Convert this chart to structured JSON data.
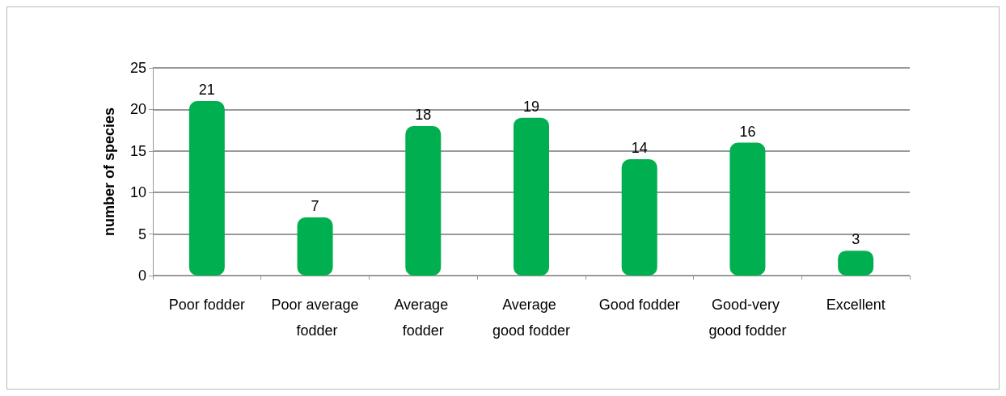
{
  "chart_data": {
    "type": "bar",
    "ylabel": "number of species",
    "categories": [
      "Poor fodder",
      "Poor average fodder",
      "Average fodder",
      "Average good fodder",
      "Good fodder",
      "Good-very good fodder",
      "Excellent"
    ],
    "values": [
      21,
      7,
      18,
      19,
      14,
      16,
      3
    ],
    "color": "#00b050",
    "ylim": [
      0,
      25
    ],
    "yticks": [
      0,
      5,
      10,
      15,
      20,
      25
    ],
    "grid": "y",
    "data_labels": true
  }
}
